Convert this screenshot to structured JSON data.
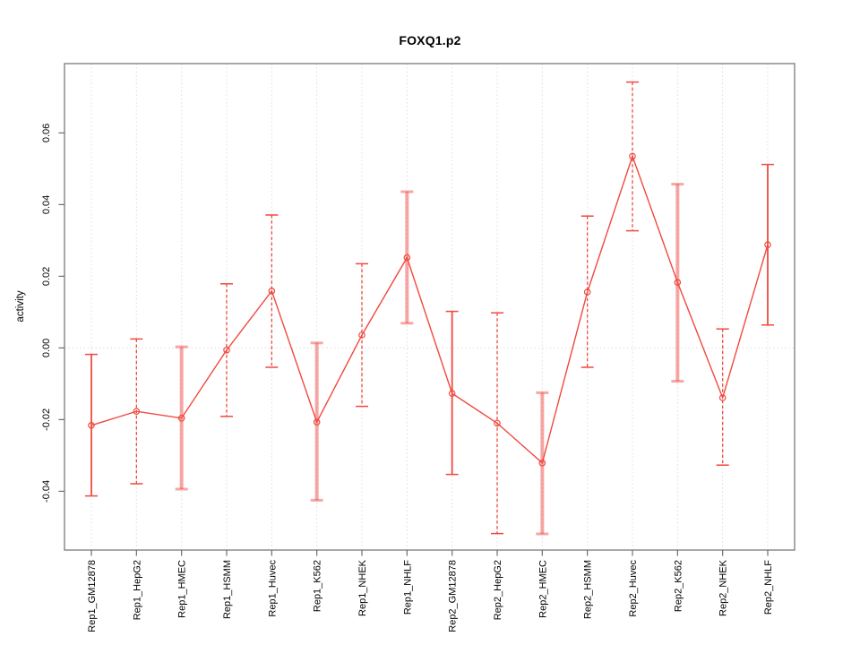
{
  "chart_data": {
    "type": "line",
    "title": "FOXQ1.p2",
    "ylabel": "activity",
    "xlabel": "",
    "legend": "none",
    "grid": "vertical dotted gridline per category; dotted horizontal line at y=0",
    "categories": [
      "Rep1_GM12878",
      "Rep1_HepG2",
      "Rep1_HMEC",
      "Rep1_HSMM",
      "Rep1_Huvec",
      "Rep1_K562",
      "Rep1_NHEK",
      "Rep1_NHLF",
      "Rep2_GM12878",
      "Rep2_HepG2",
      "Rep2_HMEC",
      "Rep2_HSMM",
      "Rep2_Huvec",
      "Rep2_K562",
      "Rep2_NHEK",
      "Rep2_NHLF"
    ],
    "series": [
      {
        "name": "activity",
        "values": [
          -0.0216,
          -0.0177,
          -0.0196,
          -0.0006,
          0.0159,
          -0.0207,
          0.0036,
          0.0252,
          -0.0127,
          -0.021,
          -0.0321,
          0.0156,
          0.0535,
          0.0183,
          -0.0139,
          0.0288
        ],
        "error_high": [
          -0.0018,
          0.0025,
          0.0003,
          0.0179,
          0.0371,
          0.0014,
          0.0235,
          0.0436,
          0.0102,
          0.0098,
          -0.0125,
          0.0368,
          0.0742,
          0.0457,
          0.0053,
          0.0512
        ],
        "error_low": [
          -0.0413,
          -0.0379,
          -0.0394,
          -0.0191,
          -0.0054,
          -0.0425,
          -0.0163,
          0.0069,
          -0.0353,
          -0.0518,
          -0.0519,
          -0.0054,
          0.0327,
          -0.0093,
          -0.0327,
          0.0064
        ],
        "error_bar_styles": [
          "solid",
          "dashed",
          "thick",
          "dashed",
          "dashed",
          "thick",
          "dashed",
          "thick",
          "solid",
          "dashed",
          "thick",
          "dashed",
          "dashed",
          "thick",
          "dashed",
          "solid"
        ]
      }
    ],
    "yticks": [
      0.06,
      0.04,
      0.02,
      0,
      -0.02,
      -0.04
    ],
    "ytick_labels": [
      "0.06",
      "0.04",
      "0.02",
      "0.00",
      "-0.02",
      "-0.04"
    ],
    "ylim": [
      -0.0565,
      0.0795
    ],
    "zero_line": 0,
    "point_marker": "open-circle",
    "colors": {
      "line": "#f0493f",
      "point": "#f0493f",
      "error_bar": "#f0493f",
      "error_bar_thick": "rgba(240,80,75,0.5)",
      "gridline": "#dcdcdc",
      "box": "#8c8c8c",
      "tick": "#6e6e6e",
      "text": "#000000",
      "background": "#ffffff"
    }
  }
}
